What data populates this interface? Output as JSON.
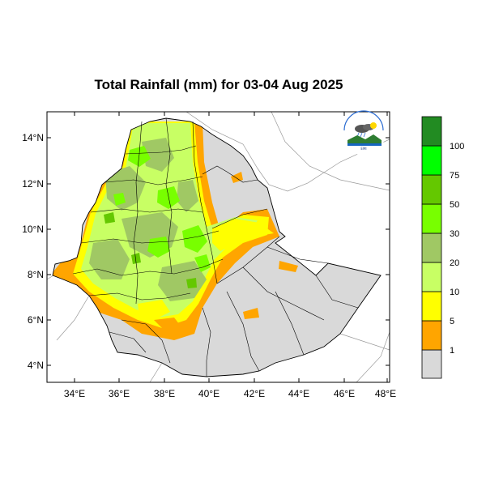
{
  "title": "Total Rainfall (mm) for 03-04 Aug 2025",
  "map": {
    "lat_labels": [
      "14°N",
      "12°N",
      "10°N",
      "8°N",
      "6°N",
      "4°N"
    ],
    "lon_labels": [
      "34°E",
      "36°E",
      "38°E",
      "40°E",
      "42°E",
      "44°E",
      "46°E",
      "48°E"
    ],
    "lon_range": [
      33,
      48.2
    ],
    "lat_range": [
      3.2,
      15
    ]
  },
  "legend": {
    "labels": [
      "1",
      "5",
      "10",
      "20",
      "30",
      "50",
      "75",
      "100"
    ],
    "colors": [
      "#d9d9d9",
      "#ffa500",
      "#ffff00",
      "#c8ff64",
      "#a0c864",
      "#78ff00",
      "#64c800",
      "#00ff00",
      "#228b22"
    ]
  },
  "logo": {
    "name": "Ethiopian Meteorology Institute",
    "top_text": "በኢትዮጵያ ሚቲዎሮሎጂ ኢንስቲትዩት",
    "short": "EMI"
  }
}
